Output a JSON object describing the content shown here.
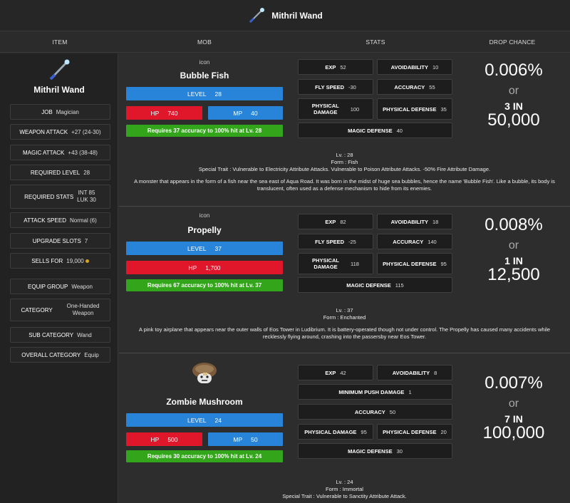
{
  "title": {
    "name": "Mithril Wand",
    "icon": "wand-icon"
  },
  "columns": {
    "item": "ITEM",
    "mob": "MOB",
    "stats": "STATS",
    "drop": "DROP CHANCE"
  },
  "item": {
    "name": "Mithril Wand",
    "job": {
      "label": "JOB",
      "value": "Magician"
    },
    "weapon_attack": {
      "label": "WEAPON ATTACK",
      "value": "+27 (24-30)"
    },
    "magic_attack": {
      "label": "MAGIC ATTACK",
      "value": "+43 (38-48)"
    },
    "required_level": {
      "label": "REQUIRED LEVEL",
      "value": "28"
    },
    "required_stats": {
      "label": "REQUIRED STATS",
      "int": "INT 85",
      "luk": "LUK 30"
    },
    "attack_speed": {
      "label": "ATTACK SPEED",
      "value": "Normal (6)"
    },
    "upgrade_slots": {
      "label": "UPGRADE SLOTS",
      "value": "7"
    },
    "sells_for": {
      "label": "SELLS FOR",
      "value": "19,000"
    },
    "equip_group": {
      "label": "EQUIP GROUP",
      "value": "Weapon"
    },
    "category": {
      "label": "CATEGORY",
      "value1": "One-Handed",
      "value2": "Weapon"
    },
    "sub_category": {
      "label": "SUB CATEGORY",
      "value": "Wand"
    },
    "overall_category": {
      "label": "OVERALL CATEGORY",
      "value": "Equip"
    }
  },
  "mobs": [
    {
      "icon_alt": "icon",
      "name": "Bubble Fish",
      "level_label": "LEVEL",
      "level": "28",
      "hp_label": "HP",
      "hp": "740",
      "mp_label": "MP",
      "mp": "40",
      "accuracy_note": "Requires 37 accuracy to 100% hit at Lv. 28",
      "stats": {
        "exp": {
          "label": "EXP",
          "value": "52"
        },
        "avoidability": {
          "label": "AVOIDABILITY",
          "value": "10"
        },
        "fly_speed": {
          "label": "FLY SPEED",
          "value": "-30"
        },
        "accuracy": {
          "label": "ACCURACY",
          "value": "55"
        },
        "phys_dmg": {
          "label1": "PHYSICAL",
          "label2": "DAMAGE",
          "value": "100"
        },
        "phys_def": {
          "label": "PHYSICAL DEFENSE",
          "value": "35"
        },
        "magic_def": {
          "label": "MAGIC DEFENSE",
          "value": "40"
        }
      },
      "drop": {
        "pct": "0.006%",
        "or": "or",
        "n_in": "3 IN",
        "denom": "50,000"
      },
      "desc": {
        "lv": "Lv. : 28",
        "form": "Form : Fish",
        "trait": "Special Trait : Vulnerable to Electricity Attribute Attacks. Vulnerable to Poison Attribute Attacks. -50% Fire Attribute Damage.",
        "text": "A monster that appears in the form of a fish near the sea east of Aqua Road. It was born in the midst of huge sea bubbles, hence the name 'Bubble Fish'. Like a bubble, its body is translucent, often used as a defense mechanism to hide from its enemies."
      }
    },
    {
      "icon_alt": "icon",
      "name": "Propelly",
      "level_label": "LEVEL",
      "level": "37",
      "hp_label": "HP",
      "hp": "1,700",
      "accuracy_note": "Requires 67 accuracy to 100% hit at Lv. 37",
      "stats": {
        "exp": {
          "label": "EXP",
          "value": "82"
        },
        "avoidability": {
          "label": "AVOIDABILITY",
          "value": "18"
        },
        "fly_speed": {
          "label": "FLY SPEED",
          "value": "-25"
        },
        "accuracy": {
          "label": "ACCURACY",
          "value": "140"
        },
        "phys_dmg": {
          "label1": "PHYSICAL",
          "label2": "DAMAGE",
          "value": "118"
        },
        "phys_def": {
          "label": "PHYSICAL DEFENSE",
          "value": "95"
        },
        "magic_def": {
          "label": "MAGIC DEFENSE",
          "value": "115"
        }
      },
      "drop": {
        "pct": "0.008%",
        "or": "or",
        "n_in": "1 IN",
        "denom": "12,500"
      },
      "desc": {
        "lv": "Lv. : 37",
        "form": "Form : Enchanted",
        "text": "A pink toy airplane that appears near the outer walls of Eos Tower in Ludibrium. It is battery-operated though not under control. The Propelly has caused many accidents while recklessly flying around, crashing into the passersby near Eos Tower."
      }
    },
    {
      "name": "Zombie Mushroom",
      "level_label": "LEVEL",
      "level": "24",
      "hp_label": "HP",
      "hp": "500",
      "mp_label": "MP",
      "mp": "50",
      "accuracy_note": "Requires 30 accuracy to 100% hit at Lv. 24",
      "stats": {
        "exp": {
          "label": "EXP",
          "value": "42"
        },
        "avoidability": {
          "label": "AVOIDABILITY",
          "value": "8"
        },
        "min_push": {
          "label": "MINIMUM PUSH DAMAGE",
          "value": "1"
        },
        "accuracy": {
          "label": "ACCURACY",
          "value": "50"
        },
        "phys_dmg": {
          "label": "PHYSICAL DAMAGE",
          "value": "95"
        },
        "phys_def": {
          "label": "PHYSICAL DEFENSE",
          "value": "20"
        },
        "magic_def": {
          "label": "MAGIC DEFENSE",
          "value": "30"
        }
      },
      "drop": {
        "pct": "0.007%",
        "or": "or",
        "n_in": "7 IN",
        "denom": "100,000"
      },
      "desc": {
        "lv": "Lv. : 24",
        "form": "Form : Immortal",
        "trait": "Special Trait : Vulnerable to Sanctity Attribute Attack."
      }
    }
  ]
}
